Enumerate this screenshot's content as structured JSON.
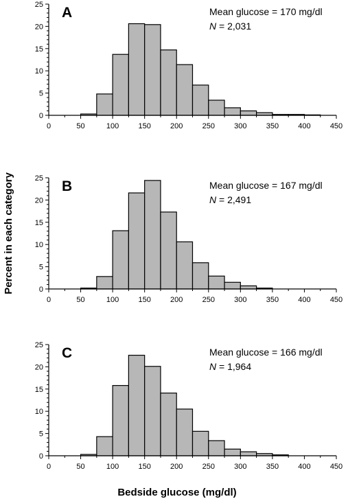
{
  "ylabel": "Percent in each category",
  "xlabel": "Bedside glucose (mg/dl)",
  "chart_data": [
    {
      "type": "bar",
      "panel": "A",
      "annotation": {
        "mean_text": "Mean glucose = 170 mg/dl",
        "n_symbol": "N",
        "n_text": " = 2,031"
      },
      "bin_width": 25,
      "bins_start": [
        50,
        75,
        100,
        125,
        150,
        175,
        200,
        225,
        250,
        275,
        300,
        325,
        350,
        375,
        400
      ],
      "values": [
        0.3,
        4.8,
        13.7,
        20.6,
        20.4,
        14.7,
        11.4,
        6.8,
        3.4,
        1.7,
        1.0,
        0.6,
        0.2,
        0.2,
        0.1
      ],
      "xlim": [
        0,
        450
      ],
      "ylim": [
        0,
        25
      ],
      "xticks": [
        0,
        50,
        100,
        150,
        200,
        250,
        300,
        350,
        400,
        450
      ],
      "yticks": [
        0,
        5,
        10,
        15,
        20,
        25
      ]
    },
    {
      "type": "bar",
      "panel": "B",
      "annotation": {
        "mean_text": "Mean glucose = 167 mg/dl",
        "n_symbol": "N",
        "n_text": " = 2,491"
      },
      "bin_width": 25,
      "bins_start": [
        50,
        75,
        100,
        125,
        150,
        175,
        200,
        225,
        250,
        275,
        300,
        325
      ],
      "values": [
        0.2,
        2.8,
        13.1,
        21.6,
        24.4,
        17.3,
        10.6,
        5.9,
        2.9,
        1.5,
        0.7,
        0.2
      ],
      "xlim": [
        0,
        450
      ],
      "ylim": [
        0,
        25
      ],
      "xticks": [
        0,
        50,
        100,
        150,
        200,
        250,
        300,
        350,
        400,
        450
      ],
      "yticks": [
        0,
        5,
        10,
        15,
        20,
        25
      ]
    },
    {
      "type": "bar",
      "panel": "C",
      "annotation": {
        "mean_text": "Mean glucose = 166 mg/dl",
        "n_symbol": "N",
        "n_text": " = 1,964"
      },
      "bin_width": 25,
      "bins_start": [
        50,
        75,
        100,
        125,
        150,
        175,
        200,
        225,
        250,
        275,
        300,
        325,
        350
      ],
      "values": [
        0.3,
        4.3,
        15.8,
        22.6,
        20.1,
        14.1,
        10.5,
        5.5,
        3.4,
        1.5,
        0.9,
        0.5,
        0.2
      ],
      "xlim": [
        0,
        450
      ],
      "ylim": [
        0,
        25
      ],
      "xticks": [
        0,
        50,
        100,
        150,
        200,
        250,
        300,
        350,
        400,
        450
      ],
      "yticks": [
        0,
        5,
        10,
        15,
        20,
        25
      ]
    }
  ]
}
